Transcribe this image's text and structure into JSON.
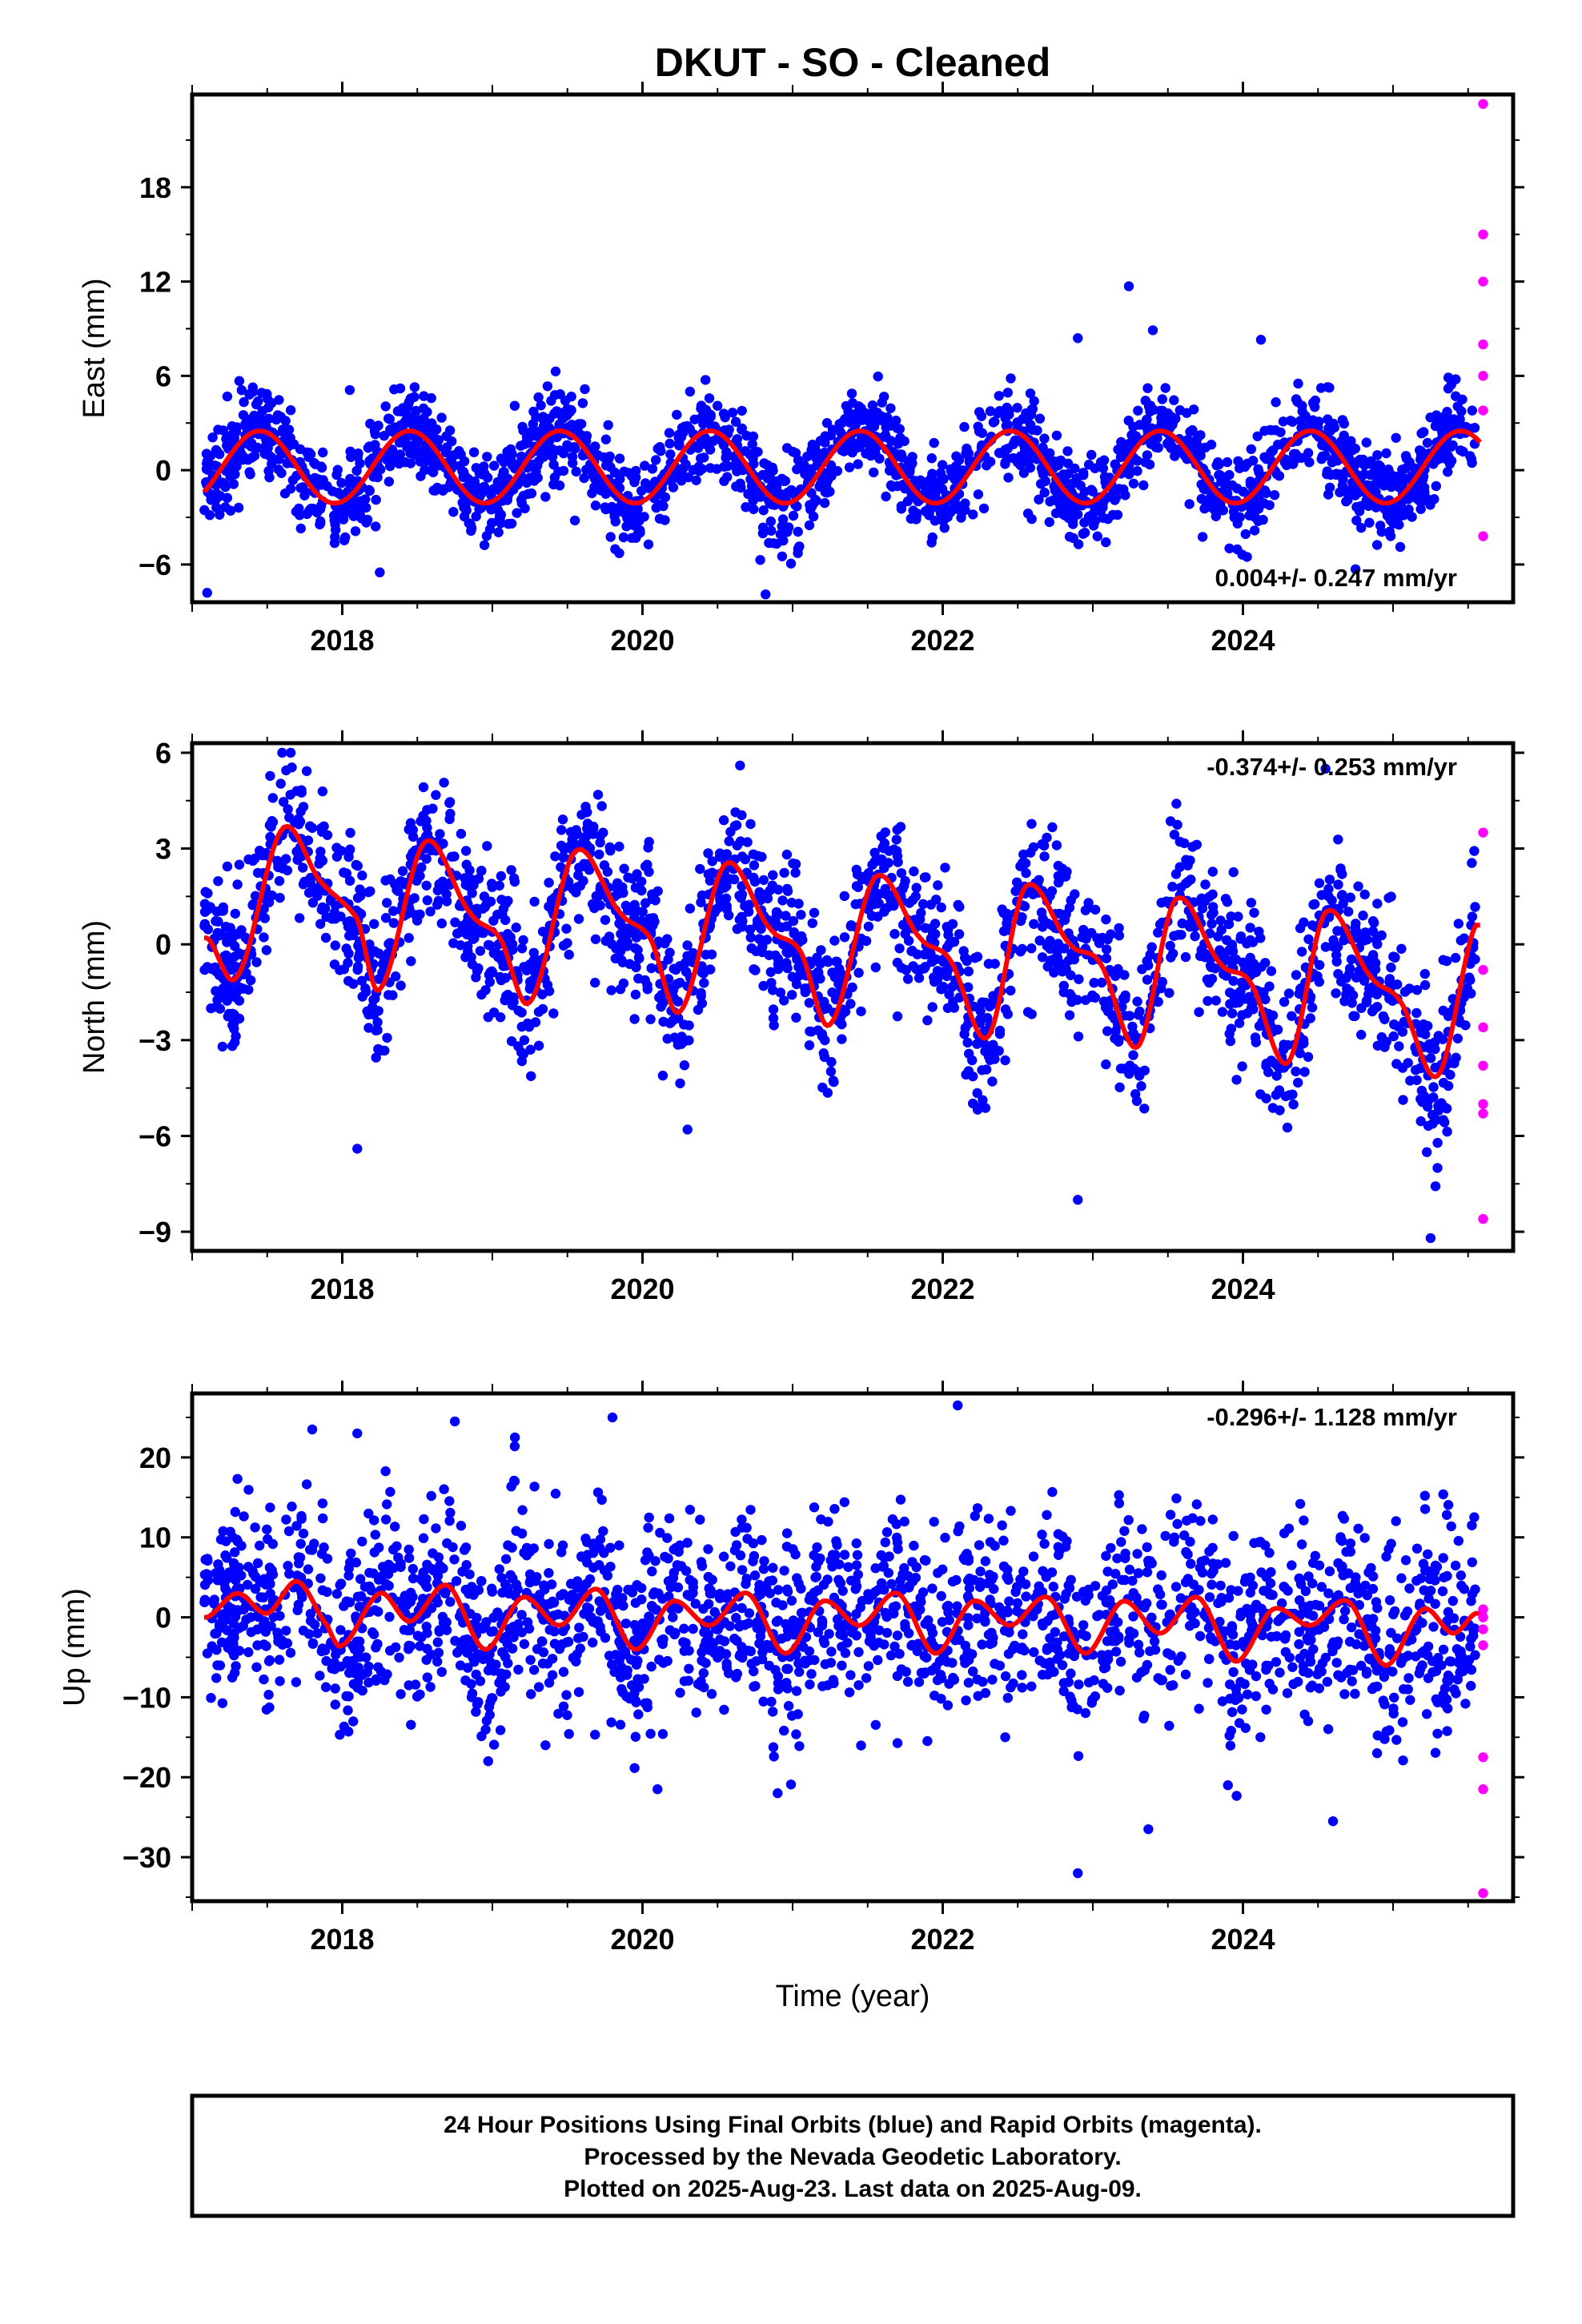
{
  "title": "DKUT  - SO - Cleaned",
  "colors": {
    "final": "#0000ff",
    "rapid": "#ff00ff",
    "fit": "#ff0000",
    "frame": "#000000"
  },
  "footer": {
    "line1": "24 Hour Positions Using Final Orbits (blue) and Rapid Orbits (magenta).",
    "line2": "Processed by the Nevada Geodetic Laboratory.",
    "line3": "Plotted on 2025-Aug-23. Last data on 2025-Aug-09."
  },
  "chart_data": [
    {
      "type": "scatter",
      "ylabel": "East (mm)",
      "xlim": [
        2017.0,
        2025.8
      ],
      "ylim": [
        -8.4,
        23.9
      ],
      "yticks": [
        18,
        12,
        6,
        0,
        -6
      ],
      "yticklabels": [
        "18",
        "12",
        "6",
        "0",
        "−6"
      ],
      "xticks": [
        2018,
        2020,
        2022,
        2024
      ],
      "xticklabels": [
        "2018",
        "2020",
        "2022",
        "2024"
      ],
      "rate_text": "0.004+/- 0.247 mm/yr",
      "rate_pos": "bottom-right",
      "series": [
        {
          "kind": "final_scatter",
          "x_range": [
            2017.08,
            2025.55
          ],
          "noise": 1.4,
          "envelope": [
            -8.0,
            11.7
          ],
          "highlights": [
            [
              2017.1,
              -7.8
            ],
            [
              2020.82,
              -7.9
            ],
            [
              2022.9,
              8.4
            ],
            [
              2023.24,
              11.7
            ],
            [
              2023.4,
              8.9
            ],
            [
              2024.12,
              8.3
            ],
            [
              2024.75,
              -6.3
            ],
            [
              2018.25,
              -6.5
            ],
            [
              2018.05,
              5.1
            ]
          ]
        },
        {
          "kind": "rapid_scatter",
          "x": [
            2025.6,
            2025.6,
            2025.6,
            2025.6,
            2025.6,
            2025.6,
            2025.6
          ],
          "y": [
            23.3,
            15.0,
            12.0,
            8.0,
            6.0,
            3.8,
            -4.2
          ]
        },
        {
          "kind": "fit",
          "amplitude": 2.3,
          "phase_peak": 0.45,
          "offset": 0.2
        }
      ]
    },
    {
      "type": "scatter",
      "ylabel": "North (mm)",
      "xlim": [
        2017.0,
        2025.8
      ],
      "ylim": [
        -9.6,
        6.3
      ],
      "yticks": [
        6,
        3,
        0,
        -3,
        -6,
        -9
      ],
      "yticklabels": [
        "6",
        "3",
        "0",
        "−3",
        "−6",
        "−9"
      ],
      "xticks": [
        2018,
        2020,
        2022,
        2024
      ],
      "xticklabels": [
        "2018",
        "2020",
        "2022",
        "2024"
      ],
      "rate_text": "-0.374+/- 0.253 mm/yr",
      "rate_pos": "top-right",
      "series": [
        {
          "kind": "final_scatter",
          "x_range": [
            2017.08,
            2025.55
          ],
          "noise": 1.2,
          "envelope": [
            -9.3,
            6.0
          ],
          "highlights": [
            [
              2017.6,
              6.0
            ],
            [
              2020.65,
              5.6
            ],
            [
              2024.55,
              5.5
            ],
            [
              2022.9,
              -8.0
            ],
            [
              2025.25,
              -9.2
            ],
            [
              2018.1,
              -6.4
            ],
            [
              2020.3,
              -5.8
            ]
          ]
        },
        {
          "kind": "rapid_scatter",
          "x": [
            2025.6,
            2025.6,
            2025.6,
            2025.6,
            2025.6,
            2025.6,
            2025.6
          ],
          "y": [
            3.5,
            -0.8,
            -2.6,
            -3.8,
            -5.0,
            -5.3,
            -8.6
          ]
        },
        {
          "kind": "fit_knots",
          "x": [
            2017.1,
            2017.3,
            2017.6,
            2017.85,
            2018.1,
            2018.25,
            2018.55,
            2018.85,
            2019.05,
            2019.25,
            2019.55,
            2019.85,
            2020.05,
            2020.25,
            2020.55,
            2020.85,
            2021.05,
            2021.25,
            2021.55,
            2021.85,
            2022.05,
            2022.3,
            2022.55,
            2022.85,
            2023.05,
            2023.3,
            2023.55,
            2023.85,
            2024.05,
            2024.3,
            2024.55,
            2024.85,
            2025.05,
            2025.3,
            2025.55
          ],
          "y": [
            0.2,
            -1.0,
            3.6,
            2.0,
            0.8,
            -1.4,
            3.2,
            1.0,
            0.2,
            -1.8,
            2.9,
            1.0,
            0.2,
            -2.1,
            2.5,
            0.5,
            -0.2,
            -2.5,
            2.1,
            0.2,
            -0.5,
            -2.9,
            1.8,
            0.0,
            -0.6,
            -3.2,
            1.4,
            -0.6,
            -1.2,
            -3.7,
            1.0,
            -1.0,
            -1.8,
            -4.1,
            0.6
          ]
        }
      ]
    },
    {
      "type": "scatter",
      "ylabel": "Up (mm)",
      "xlabel": "Time (year)",
      "xlim": [
        2017.0,
        2025.8
      ],
      "ylim": [
        -35.5,
        28.0
      ],
      "yticks": [
        20,
        10,
        0,
        -10,
        -20,
        -30
      ],
      "yticklabels": [
        "20",
        "10",
        "0",
        "−10",
        "−20",
        "−30"
      ],
      "xticks": [
        2018,
        2020,
        2022,
        2024
      ],
      "xticklabels": [
        "2018",
        "2020",
        "2022",
        "2024"
      ],
      "rate_text": "-0.296+/- 1.128 mm/yr",
      "rate_pos": "top-right",
      "series": [
        {
          "kind": "final_scatter",
          "x_range": [
            2017.08,
            2025.55
          ],
          "noise": 6.0,
          "envelope": [
            -32.0,
            26.5
          ],
          "highlights": [
            [
              2017.8,
              23.5
            ],
            [
              2018.1,
              23.0
            ],
            [
              2018.75,
              24.5
            ],
            [
              2019.15,
              22.5
            ],
            [
              2019.8,
              25.0
            ],
            [
              2022.1,
              26.5
            ],
            [
              2022.9,
              -32.0
            ],
            [
              2023.37,
              -26.5
            ],
            [
              2024.6,
              -25.5
            ],
            [
              2020.1,
              -21.5
            ],
            [
              2020.9,
              -22.0
            ],
            [
              2023.9,
              -21.0
            ]
          ]
        },
        {
          "kind": "rapid_scatter",
          "x": [
            2025.6,
            2025.6,
            2025.6,
            2025.6,
            2025.6,
            2025.6,
            2025.6
          ],
          "y": [
            1.0,
            -1.5,
            -3.5,
            -17.5,
            -21.5,
            -34.5,
            0.0
          ]
        },
        {
          "kind": "fit_knots",
          "x": [
            2017.1,
            2017.3,
            2017.5,
            2017.7,
            2017.9,
            2018.0,
            2018.25,
            2018.45,
            2018.7,
            2018.95,
            2019.2,
            2019.45,
            2019.7,
            2019.95,
            2020.2,
            2020.45,
            2020.7,
            2020.95,
            2021.2,
            2021.45,
            2021.7,
            2021.95,
            2022.2,
            2022.45,
            2022.7,
            2022.95,
            2023.2,
            2023.45,
            2023.7,
            2023.95,
            2024.2,
            2024.45,
            2024.7,
            2024.95,
            2025.2,
            2025.4,
            2025.55
          ],
          "y": [
            0.0,
            3.0,
            0.5,
            4.5,
            -1.0,
            -3.5,
            3.0,
            -0.5,
            4.0,
            -4.0,
            2.5,
            -1.0,
            3.5,
            -4.0,
            2.0,
            -1.0,
            3.0,
            -4.5,
            2.0,
            -1.0,
            3.0,
            -4.5,
            2.0,
            -1.0,
            2.5,
            -4.5,
            2.0,
            -2.0,
            2.5,
            -5.5,
            1.0,
            -1.0,
            2.0,
            -6.0,
            1.0,
            -2.0,
            0.5
          ]
        }
      ]
    }
  ]
}
